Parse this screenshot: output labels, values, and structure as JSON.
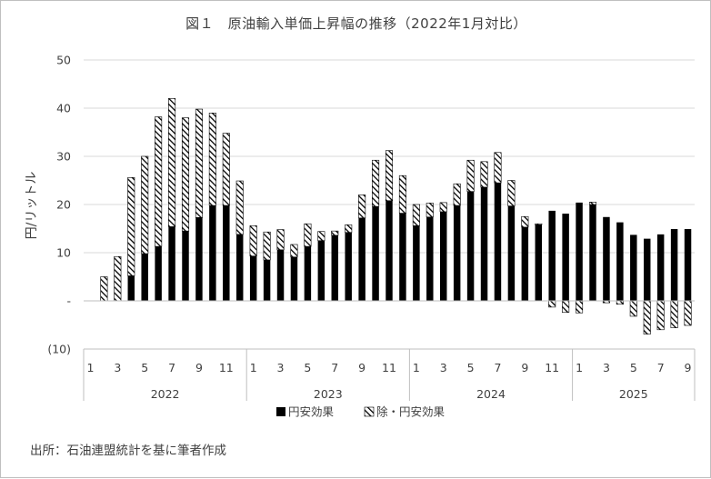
{
  "chart_data": {
    "type": "bar",
    "stacked": true,
    "title": "図１　原油輸入単価上昇幅の推移（2022年1月対比）",
    "ylabel": "円/リットル",
    "xlabel": "",
    "ylim": [
      -10,
      50
    ],
    "y_ticks": [
      {
        "value": 50,
        "label": "50"
      },
      {
        "value": 40,
        "label": "40"
      },
      {
        "value": 30,
        "label": "30"
      },
      {
        "value": 20,
        "label": "20"
      },
      {
        "value": 10,
        "label": "10"
      },
      {
        "value": 0,
        "label": "-"
      },
      {
        "value": -10,
        "label": "(10)"
      }
    ],
    "grid": true,
    "legend_position": "bottom",
    "years": [
      {
        "label": "2022",
        "months": 12
      },
      {
        "label": "2023",
        "months": 12
      },
      {
        "label": "2024",
        "months": 12
      },
      {
        "label": "2025",
        "months": 9
      }
    ],
    "categories": [
      "1",
      "2",
      "3",
      "4",
      "5",
      "6",
      "7",
      "8",
      "9",
      "10",
      "11",
      "12",
      "1",
      "2",
      "3",
      "4",
      "5",
      "6",
      "7",
      "8",
      "9",
      "10",
      "11",
      "12",
      "1",
      "2",
      "3",
      "4",
      "5",
      "6",
      "7",
      "8",
      "9",
      "10",
      "11",
      "12",
      "1",
      "2",
      "3",
      "4",
      "5",
      "6",
      "7",
      "8",
      "9"
    ],
    "tick_labels": [
      "1",
      "",
      "3",
      "",
      "5",
      "",
      "7",
      "",
      "9",
      "",
      "11",
      "",
      "1",
      "",
      "3",
      "",
      "5",
      "",
      "7",
      "",
      "9",
      "",
      "11",
      "",
      "1",
      "",
      "3",
      "",
      "5",
      "",
      "7",
      "",
      "9",
      "",
      "11",
      "",
      "1",
      "",
      "3",
      "",
      "5",
      "",
      "7",
      "",
      "9"
    ],
    "series": [
      {
        "name": "円安効果",
        "color": "#000000",
        "pattern": "solid",
        "values": [
          0,
          0,
          0,
          5.2,
          9.8,
          11.3,
          15.4,
          14.5,
          17.3,
          19.8,
          19.8,
          13.8,
          9.3,
          8.5,
          10.6,
          9.1,
          11.3,
          12.5,
          13.6,
          14.2,
          17.2,
          19.6,
          20.8,
          18.2,
          15.6,
          17.4,
          18.5,
          19.8,
          22.7,
          23.6,
          24.5,
          19.7,
          15.3,
          15.8,
          18.7,
          18.1,
          20.4,
          20.0,
          17.4,
          16.3,
          13.7,
          12.9,
          13.8,
          14.9,
          14.9
        ]
      },
      {
        "name": "除・円安効果",
        "color": "#000000",
        "pattern": "hatch",
        "values": [
          0,
          5.0,
          9.2,
          20.4,
          20.2,
          26.9,
          26.6,
          23.5,
          22.5,
          19.2,
          15.0,
          11.1,
          6.3,
          5.8,
          4.2,
          2.6,
          4.7,
          1.9,
          0.9,
          1.6,
          4.8,
          9.6,
          10.4,
          7.8,
          4.4,
          2.9,
          1.9,
          4.5,
          6.5,
          5.3,
          6.3,
          5.3,
          2.2,
          0.2,
          -1.3,
          -2.4,
          -2.5,
          0.5,
          -0.4,
          -0.7,
          -3.2,
          -6.9,
          -6.0,
          -5.6,
          -5.1
        ]
      }
    ]
  },
  "source_note": "出所：石油連盟統計を基に筆者作成"
}
